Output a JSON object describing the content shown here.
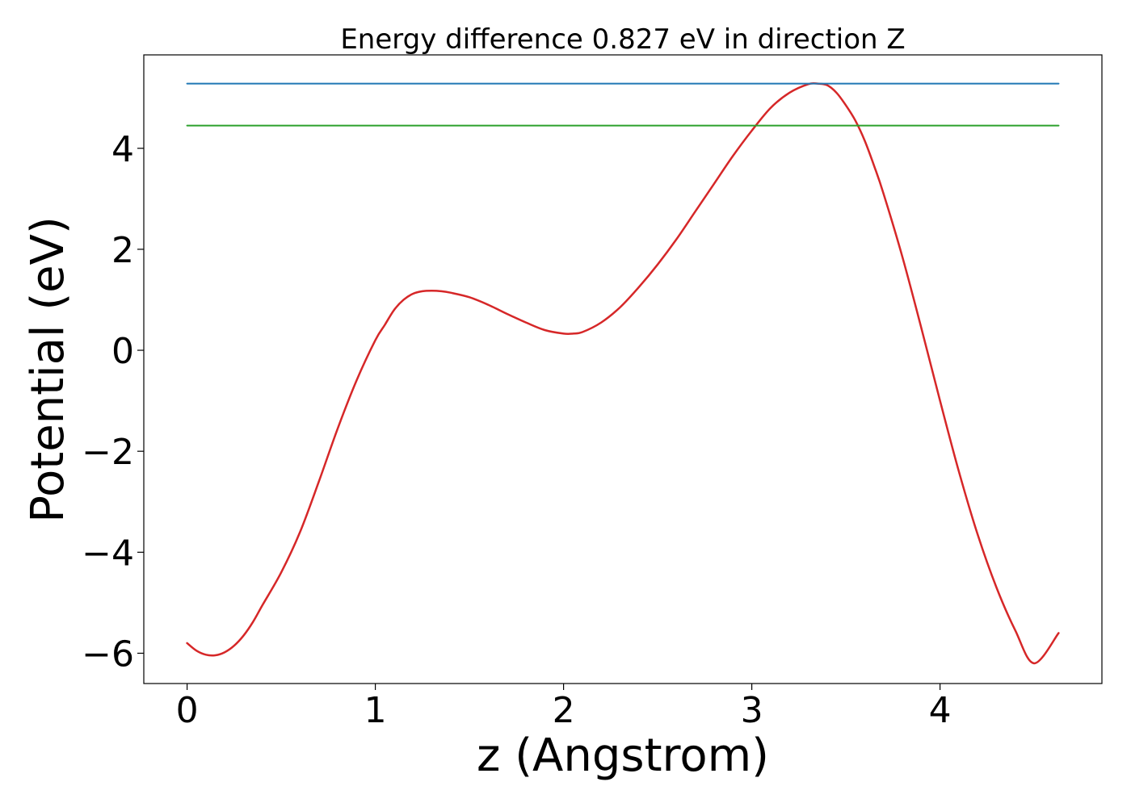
{
  "chart_data": {
    "type": "line",
    "title": "Energy difference 0.827 eV in direction Z",
    "xlabel": "z (Angstrom)",
    "ylabel": "Potential (eV)",
    "xlim": [
      -0.23,
      4.86
    ],
    "ylim": [
      -6.6,
      5.85
    ],
    "x_ticks": [
      0,
      1,
      2,
      3,
      4
    ],
    "x_tick_labels": [
      "0",
      "1",
      "2",
      "3",
      "4"
    ],
    "y_ticks": [
      -6,
      -4,
      -2,
      0,
      2,
      4
    ],
    "y_tick_labels": [
      "−6",
      "−4",
      "−2",
      "0",
      "2",
      "4"
    ],
    "grid": false,
    "series": [
      {
        "color": "#d62728",
        "style": "curve",
        "x": [
          0,
          0.05,
          0.1,
          0.15,
          0.2,
          0.25,
          0.3,
          0.35,
          0.4,
          0.5,
          0.6,
          0.7,
          0.8,
          0.9,
          1.0,
          1.05,
          1.1,
          1.15,
          1.2,
          1.25,
          1.3,
          1.35,
          1.4,
          1.5,
          1.6,
          1.7,
          1.8,
          1.9,
          2.0,
          2.05,
          2.1,
          2.2,
          2.3,
          2.4,
          2.5,
          2.6,
          2.7,
          2.8,
          2.9,
          3.0,
          3.1,
          3.2,
          3.3,
          3.35,
          3.4,
          3.45,
          3.5,
          3.55,
          3.6,
          3.65,
          3.7,
          3.8,
          3.9,
          4.0,
          4.1,
          4.2,
          4.3,
          4.4,
          4.5,
          4.63
        ],
        "y": [
          -5.8,
          -5.95,
          -6.03,
          -6.04,
          -5.98,
          -5.85,
          -5.65,
          -5.38,
          -5.05,
          -4.4,
          -3.6,
          -2.6,
          -1.55,
          -0.6,
          0.2,
          0.5,
          0.8,
          1.0,
          1.12,
          1.17,
          1.18,
          1.17,
          1.14,
          1.05,
          0.9,
          0.72,
          0.55,
          0.4,
          0.33,
          0.33,
          0.36,
          0.55,
          0.85,
          1.25,
          1.7,
          2.2,
          2.75,
          3.3,
          3.85,
          4.35,
          4.8,
          5.1,
          5.27,
          5.28,
          5.25,
          5.1,
          4.85,
          4.55,
          4.15,
          3.65,
          3.1,
          1.85,
          0.45,
          -1.0,
          -2.4,
          -3.65,
          -4.7,
          -5.55,
          -6.2,
          -5.6
        ]
      },
      {
        "color": "#1f77b4",
        "style": "hline",
        "x": [
          0,
          4.63
        ],
        "y": [
          5.28,
          5.28
        ]
      },
      {
        "color": "#2ca02c",
        "style": "hline",
        "x": [
          0,
          4.63
        ],
        "y": [
          4.45,
          4.45
        ]
      }
    ]
  }
}
